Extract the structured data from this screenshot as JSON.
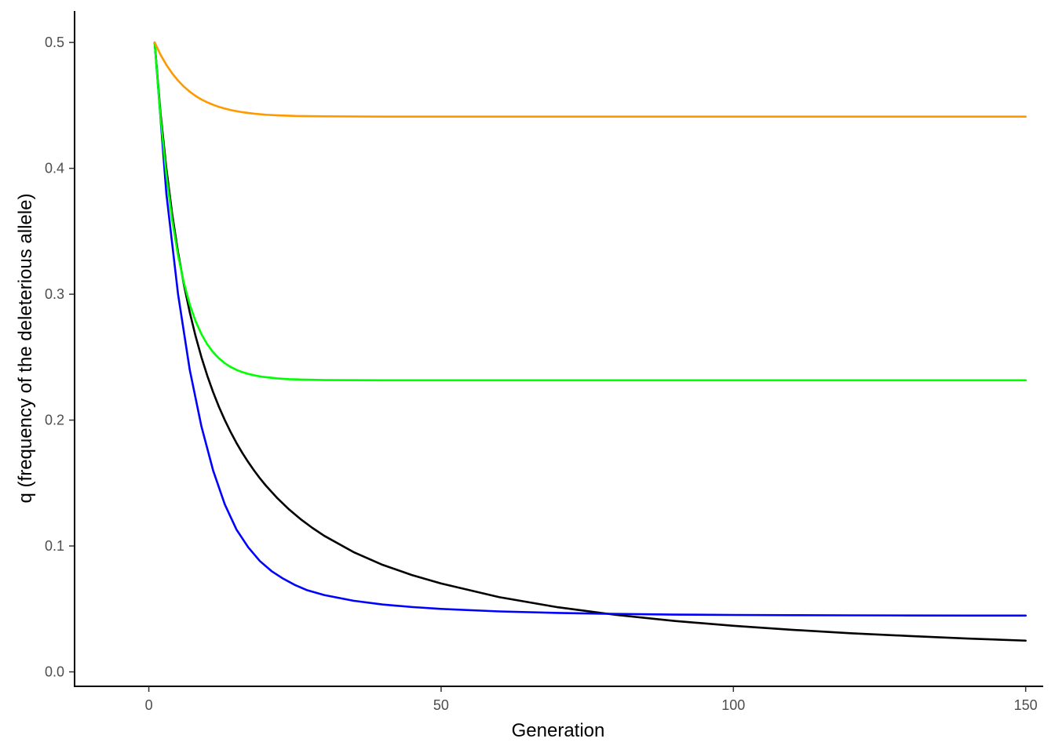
{
  "chart_data": {
    "type": "line",
    "title": "",
    "xlabel": "Generation",
    "ylabel": "q (frequency of the deleterious allele)",
    "xlim": [
      -12.7,
      153
    ],
    "ylim": [
      -0.0115,
      0.525
    ],
    "x_ticks": [
      0,
      50,
      100,
      150
    ],
    "y_ticks": [
      0.0,
      0.1,
      0.2,
      0.3,
      0.4,
      0.5
    ],
    "x_tick_labels": [
      "0",
      "50",
      "100",
      "150"
    ],
    "y_tick_labels": [
      "0.0",
      "0.1",
      "0.2",
      "0.3",
      "0.4",
      "0.5"
    ],
    "grid": false,
    "legend": "none",
    "series": [
      {
        "color": "#000000",
        "x": [
          1,
          2,
          3,
          4,
          5,
          6,
          7,
          8,
          9,
          10,
          11,
          12,
          13,
          14,
          15,
          16,
          17,
          18,
          19,
          20,
          22,
          24,
          26,
          28,
          30,
          35,
          40,
          45,
          50,
          60,
          70,
          80,
          90,
          100,
          110,
          120,
          130,
          140,
          150
        ],
        "y": [
          0.5,
          0.444,
          0.4,
          0.3636,
          0.3333,
          0.3077,
          0.2857,
          0.2667,
          0.25,
          0.2353,
          0.2222,
          0.2105,
          0.2,
          0.1905,
          0.1818,
          0.1739,
          0.1667,
          0.16,
          0.1538,
          0.1481,
          0.1379,
          0.129,
          0.1212,
          0.1143,
          0.1081,
          0.0952,
          0.085,
          0.0769,
          0.0702,
          0.0593,
          0.0513,
          0.0452,
          0.0404,
          0.0366,
          0.0334,
          0.0307,
          0.0285,
          0.0265,
          0.0248
        ]
      },
      {
        "color": "#0000ff",
        "x": [
          1,
          3,
          5,
          7,
          9,
          11,
          13,
          15,
          17,
          19,
          21,
          23,
          25,
          27,
          30,
          35,
          40,
          45,
          50,
          60,
          70,
          80,
          90,
          100,
          110,
          120,
          130,
          140,
          150
        ],
        "y": [
          0.5,
          0.38,
          0.3,
          0.24,
          0.195,
          0.16,
          0.133,
          0.113,
          0.099,
          0.088,
          0.08,
          0.074,
          0.069,
          0.065,
          0.061,
          0.0565,
          0.0535,
          0.0515,
          0.05,
          0.048,
          0.0468,
          0.046,
          0.0455,
          0.0452,
          0.045,
          0.0449,
          0.0448,
          0.0447,
          0.0447
        ]
      },
      {
        "color": "#00ff00",
        "x": [
          1,
          2,
          3,
          4,
          5,
          6,
          7,
          8,
          9,
          10,
          11,
          12,
          13,
          14,
          15,
          16,
          17,
          18,
          19,
          20,
          22,
          24,
          26,
          28,
          30,
          35,
          40,
          45,
          50,
          60,
          70,
          80,
          90,
          100,
          110,
          120,
          130,
          140,
          150
        ],
        "y": [
          0.5,
          0.4408,
          0.3948,
          0.3589,
          0.3309,
          0.309,
          0.2919,
          0.2786,
          0.2683,
          0.2602,
          0.2539,
          0.249,
          0.2452,
          0.2422,
          0.2399,
          0.2381,
          0.2367,
          0.2356,
          0.2347,
          0.2341,
          0.2331,
          0.2325,
          0.2322,
          0.232,
          0.2318,
          0.2317,
          0.2316,
          0.2316,
          0.2316,
          0.2316,
          0.2316,
          0.2316,
          0.2316,
          0.2316,
          0.2316,
          0.2316,
          0.2316,
          0.2316,
          0.2316
        ]
      },
      {
        "color": "#ff9900",
        "x": [
          1,
          2,
          3,
          4,
          5,
          6,
          7,
          8,
          9,
          10,
          11,
          12,
          13,
          14,
          15,
          16,
          18,
          20,
          22,
          25,
          30,
          40,
          50,
          60,
          70,
          80,
          90,
          100,
          110,
          120,
          130,
          140,
          150
        ],
        "y": [
          0.5,
          0.4903,
          0.4822,
          0.4754,
          0.4697,
          0.4649,
          0.4609,
          0.4575,
          0.4547,
          0.4524,
          0.4505,
          0.4488,
          0.4475,
          0.4463,
          0.4454,
          0.4446,
          0.4434,
          0.4426,
          0.4421,
          0.4416,
          0.4413,
          0.4411,
          0.4411,
          0.4411,
          0.4411,
          0.4411,
          0.4411,
          0.4411,
          0.4411,
          0.4411,
          0.4411,
          0.4411,
          0.4411
        ]
      }
    ]
  }
}
